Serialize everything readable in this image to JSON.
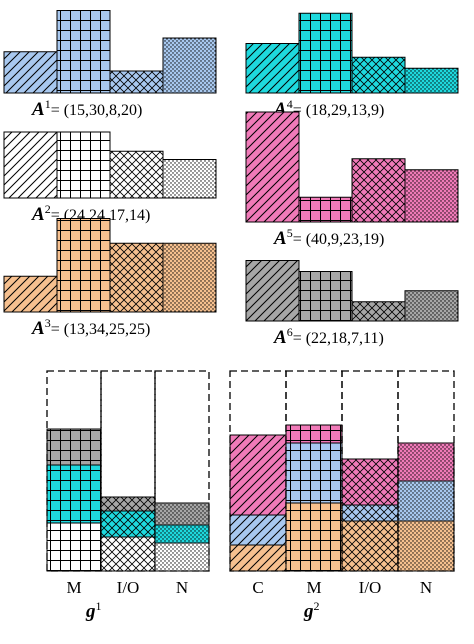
{
  "colors": {
    "blue": "#a8c8ef",
    "cyan": "#1ed9de",
    "white": "#ffffff",
    "orange": "#f6c08f",
    "pink": "#f07ab8",
    "gray": "#a6a6a6"
  },
  "patterns": [
    "diag",
    "grid",
    "cross",
    "dots"
  ],
  "apps": [
    {
      "symbol": "A",
      "index": "1",
      "text": "= (15,30,8,20)",
      "color": "blue",
      "values": [
        15,
        30,
        8,
        20
      ]
    },
    {
      "symbol": "A",
      "index": "2",
      "text": "= (24,24,17,14)",
      "color": "white",
      "values": [
        24,
        24,
        17,
        14
      ]
    },
    {
      "symbol": "A",
      "index": "3",
      "text": "= (13,34,25,25)",
      "color": "orange",
      "values": [
        13,
        34,
        25,
        25
      ]
    },
    {
      "symbol": "A",
      "index": "4",
      "text": "= (18,29,13,9)",
      "color": "cyan",
      "values": [
        18,
        29,
        13,
        9
      ]
    },
    {
      "symbol": "A",
      "index": "5",
      "text": "= (40,9,23,19)",
      "color": "pink",
      "values": [
        40,
        9,
        23,
        19
      ]
    },
    {
      "symbol": "A",
      "index": "6",
      "text": "= (22,18,7,11)",
      "color": "gray",
      "values": [
        22,
        18,
        7,
        11
      ]
    }
  ],
  "groups": [
    {
      "symbol": "g",
      "index": "1",
      "categories": [
        "M",
        "I/O",
        "N"
      ],
      "stacks": [
        {
          "category": "M",
          "segments": [
            {
              "app": 2,
              "value": 24
            },
            {
              "app": 4,
              "value": 29
            },
            {
              "app": 6,
              "value": 18
            }
          ]
        },
        {
          "category": "I/O",
          "segments": [
            {
              "app": 2,
              "value": 17
            },
            {
              "app": 4,
              "value": 13
            },
            {
              "app": 6,
              "value": 7
            }
          ]
        },
        {
          "category": "N",
          "segments": [
            {
              "app": 2,
              "value": 14
            },
            {
              "app": 4,
              "value": 9
            },
            {
              "app": 6,
              "value": 11
            }
          ]
        }
      ]
    },
    {
      "symbol": "g",
      "index": "2",
      "categories": [
        "C",
        "M",
        "I/O",
        "N"
      ],
      "stacks": [
        {
          "category": "C",
          "segments": [
            {
              "app": 3,
              "value": 13
            },
            {
              "app": 1,
              "value": 15
            },
            {
              "app": 5,
              "value": 40
            }
          ]
        },
        {
          "category": "M",
          "segments": [
            {
              "app": 3,
              "value": 34
            },
            {
              "app": 1,
              "value": 30
            },
            {
              "app": 5,
              "value": 9
            }
          ]
        },
        {
          "category": "I/O",
          "segments": [
            {
              "app": 3,
              "value": 25
            },
            {
              "app": 1,
              "value": 8
            },
            {
              "app": 5,
              "value": 23
            }
          ]
        },
        {
          "category": "N",
          "segments": [
            {
              "app": 3,
              "value": 25
            },
            {
              "app": 1,
              "value": 20
            },
            {
              "app": 5,
              "value": 19
            }
          ]
        }
      ]
    }
  ],
  "capacity": 100
}
